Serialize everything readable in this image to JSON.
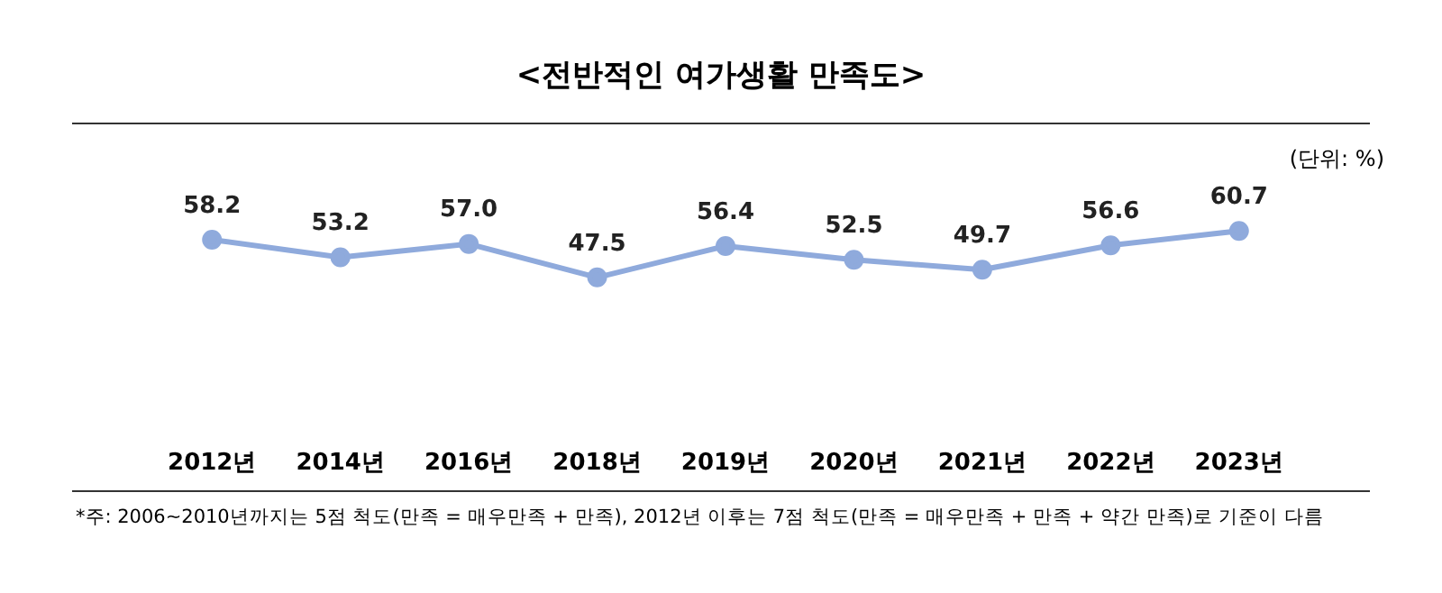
{
  "chart_data": {
    "type": "line",
    "title": "<전반적인 여가생활 만족도>",
    "categories": [
      "2012년",
      "2014년",
      "2016년",
      "2018년",
      "2019년",
      "2020년",
      "2021년",
      "2022년",
      "2023년"
    ],
    "series": [
      {
        "color": "#8faadc",
        "values": [
          58.2,
          53.2,
          57.0,
          47.5,
          56.4,
          52.5,
          49.7,
          56.6,
          60.7
        ],
        "value_labels": [
          "58.2",
          "53.2",
          "57.0",
          "47.5",
          "56.4",
          "52.5",
          "49.7",
          "56.6",
          "60.7"
        ]
      }
    ],
    "marker": "circle",
    "grid": false,
    "legend": false,
    "annotations": [
      "(단위: %)",
      "*주: 2006~2010년까지는 5점 척도(만족 = 매우만족 + 만족), 2012년 이후는 7점 척도(만족 = 매우만족 + 만족 + 약간 만족)로 기준이 다름"
    ]
  }
}
